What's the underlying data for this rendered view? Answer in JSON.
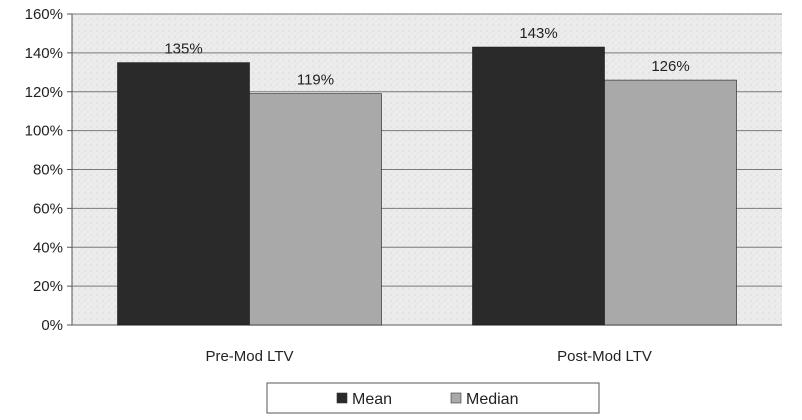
{
  "chart_data": {
    "type": "bar",
    "categories": [
      "Pre-Mod LTV",
      "Post-Mod LTV"
    ],
    "series": [
      {
        "name": "Mean",
        "values": [
          135,
          143
        ],
        "labels": [
          "135%",
          "143%"
        ],
        "color": "#2a2a2a"
      },
      {
        "name": "Median",
        "values": [
          119,
          126
        ],
        "labels": [
          "119%",
          "126%"
        ],
        "color": "#a9a9a9"
      }
    ],
    "y_ticks": [
      0,
      20,
      40,
      60,
      80,
      100,
      120,
      140,
      160
    ],
    "y_tick_labels": [
      "0%",
      "20%",
      "40%",
      "60%",
      "80%",
      "100%",
      "120%",
      "140%",
      "160%"
    ],
    "ylim": [
      0,
      160
    ],
    "grid": true,
    "legend_position": "bottom",
    "background": "#e6e6e6",
    "gridline_color": "#7a7a7a"
  }
}
